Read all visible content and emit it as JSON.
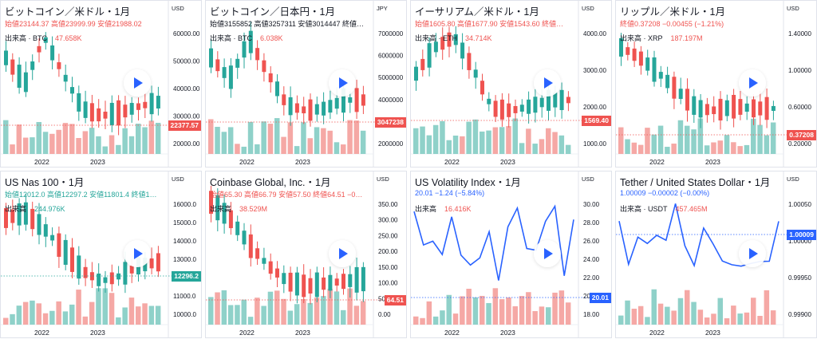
{
  "colors": {
    "up": "#26a69a",
    "down": "#ef5350",
    "line": "#2962ff",
    "up_vol": "#8fd1c9",
    "down_vol": "#f5a8a5"
  },
  "tiles": [
    {
      "title": "ビットコイン／米ドル・1月",
      "ohlc": [
        {
          "label": "始値",
          "value": "23144.37"
        },
        {
          "label": "高値",
          "value": "23999.99"
        },
        {
          "label": "安値",
          "value": "21988.02"
        }
      ],
      "ohlc_color": "#ef5350",
      "volume_label": "出来高 · BTC",
      "volume_value": "47.658K",
      "volume_color": "#ef5350",
      "currency": "USD",
      "price_badge": "22377.57",
      "badge_color": "#ef5350",
      "y_ticks": [
        "60000.00",
        "50000.00",
        "40000.00",
        "30000.00",
        "20000.00"
      ],
      "x_ticks": [
        "2022",
        "2023"
      ],
      "icons": [
        "play-icon"
      ]
    },
    {
      "title": "ビットコイン／日本円・1月",
      "ohlc": [
        {
          "label": "始値",
          "value": "3155852"
        },
        {
          "label": "高値",
          "value": "3257311"
        },
        {
          "label": "安値",
          "value": "3014447"
        },
        {
          "label": "終値",
          "value": "…"
        }
      ],
      "ohlc_color": "#131722",
      "volume_label": "出来高 · BTC",
      "volume_value": "6.038K",
      "volume_color": "#ef5350",
      "currency": "JPY",
      "price_badge": "3047238",
      "badge_color": "#ef5350",
      "y_ticks": [
        "7000000",
        "6000000",
        "5000000",
        "4000000",
        "3000000",
        "2000000"
      ],
      "x_ticks": [
        "2022",
        "2023"
      ],
      "icons": [
        "play-icon"
      ]
    },
    {
      "title": "イーサリアム／米ドル・1月",
      "ohlc": [
        {
          "label": "始値",
          "value": "1605.80"
        },
        {
          "label": "高値",
          "value": "1677.90"
        },
        {
          "label": "安値",
          "value": "1543.60"
        },
        {
          "label": "終値",
          "value": "…"
        }
      ],
      "ohlc_color": "#ef5350",
      "volume_label": "出来高 · ETH",
      "volume_value": "34.714K",
      "volume_color": "#ef5350",
      "currency": "USD",
      "price_badge": "1569.40",
      "badge_color": "#ef5350",
      "y_ticks": [
        "4000.00",
        "3000.00",
        "2000.00",
        "1000.00"
      ],
      "x_ticks": [
        "2022",
        "2023"
      ],
      "icons": [
        "play-icon"
      ]
    },
    {
      "title": "リップル／米ドル・1月",
      "ohlc": [
        {
          "label": "終値",
          "value": "0.37208"
        },
        {
          "label": "",
          "value": "−0.00455"
        },
        {
          "label": "",
          "value": "(−1.21%)"
        }
      ],
      "ohlc_color": "#ef5350",
      "volume_label": "出来高 · XRP",
      "volume_value": "187.197M",
      "volume_color": "#ef5350",
      "currency": "USD",
      "price_badge": "0.37208",
      "badge_color": "#ef5350",
      "y_ticks": [
        "1.40000",
        "1.00000",
        "0.60000",
        "0.20000"
      ],
      "x_ticks": [
        "2022",
        "2023"
      ],
      "icons": [
        "play-icon"
      ]
    },
    {
      "title": "US Nas 100・1月",
      "ohlc": [
        {
          "label": "始値",
          "value": "12012.0"
        },
        {
          "label": "高値",
          "value": "12297.2"
        },
        {
          "label": "安値",
          "value": "11801.4"
        },
        {
          "label": "終値",
          "value": "1…"
        }
      ],
      "ohlc_color": "#26a69a",
      "volume_label": "出来高",
      "volume_value": "244.976K",
      "volume_color": "#26a69a",
      "currency": "USD",
      "price_badge": "12296.2",
      "badge_color": "#26a69a",
      "y_ticks": [
        "16000.0",
        "15000.0",
        "14000.0",
        "13000.0",
        "12000.0",
        "11000.0",
        "10000.0"
      ],
      "x_ticks": [
        "2022",
        "2023"
      ],
      "icons": [
        "play-icon"
      ]
    },
    {
      "title": "Coinbase Global, Inc.・1月",
      "ohlc": [
        {
          "label": "始値",
          "value": "65.30"
        },
        {
          "label": "高値",
          "value": "66.79"
        },
        {
          "label": "安値",
          "value": "57.50"
        },
        {
          "label": "終値",
          "value": "64.51 −0…"
        }
      ],
      "ohlc_color": "#ef5350",
      "volume_label": "出来高",
      "volume_value": "38.529M",
      "volume_color": "#ef5350",
      "currency": "USD",
      "price_badge": "64.51",
      "badge_color": "#ef5350",
      "y_ticks": [
        "350.00",
        "300.00",
        "250.00",
        "200.00",
        "150.00",
        "100.00",
        "50.00",
        "0.00"
      ],
      "x_ticks": [
        "2022",
        "2023"
      ],
      "icons": [
        "play-icon"
      ]
    },
    {
      "title": "US Volatility Index・1月",
      "ohlc": [
        {
          "label": "",
          "value": "20.01"
        },
        {
          "label": "",
          "value": "−1.24"
        },
        {
          "label": "",
          "value": "(−5.84%)"
        }
      ],
      "ohlc_color": "#2962ff",
      "volume_label": "出来高",
      "volume_value": "16.416K",
      "volume_color": "#ef5350",
      "currency": "USD",
      "price_badge": "20.01",
      "badge_color": "#2962ff",
      "y_ticks": [
        "30.00",
        "28.00",
        "26.00",
        "24.00",
        "22.00",
        "20.00",
        "18.00"
      ],
      "x_ticks": [
        "2022",
        "2023"
      ],
      "icons": [
        "play-icon"
      ]
    },
    {
      "title": "Tether / United States Dollar・1月",
      "ohlc": [
        {
          "label": "",
          "value": "1.00009"
        },
        {
          "label": "",
          "value": "−0.00002"
        },
        {
          "label": "",
          "value": "(−0.00%)"
        }
      ],
      "ohlc_color": "#2962ff",
      "volume_label": "出来高 · USDT",
      "volume_value": "457.465M",
      "volume_color": "#ef5350",
      "currency": "USD",
      "price_badge": "1.00009",
      "badge_color": "#2962ff",
      "y_ticks": [
        "1.00050",
        "1.00000",
        "0.99950",
        "0.99900"
      ],
      "x_ticks": [
        "2022",
        "2023"
      ],
      "icons": [
        "play-icon"
      ]
    }
  ]
}
